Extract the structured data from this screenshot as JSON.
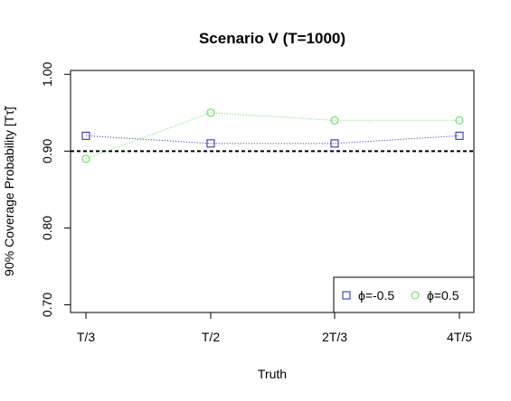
{
  "chart_data": {
    "type": "line",
    "title": "Scenario V (T=1000)",
    "xlabel": "Truth",
    "ylabel": "90% Coverage Probability [Tτ̃]",
    "categories": [
      "T/3",
      "T/2",
      "2T/3",
      "4T/5"
    ],
    "y_ticks": [
      "0.70",
      "0.80",
      "0.90",
      "1.00"
    ],
    "ylim": [
      0.69,
      1.005
    ],
    "reference_line": 0.9,
    "legend_position": "bottom-right",
    "series": [
      {
        "name": "ϕ=-0.5",
        "values": [
          0.92,
          0.91,
          0.91,
          0.92
        ],
        "color": "#2020b0",
        "marker": "square"
      },
      {
        "name": "ϕ=0.5",
        "values": [
          0.89,
          0.95,
          0.94,
          0.94
        ],
        "color": "#55dd55",
        "marker": "circle"
      }
    ]
  }
}
